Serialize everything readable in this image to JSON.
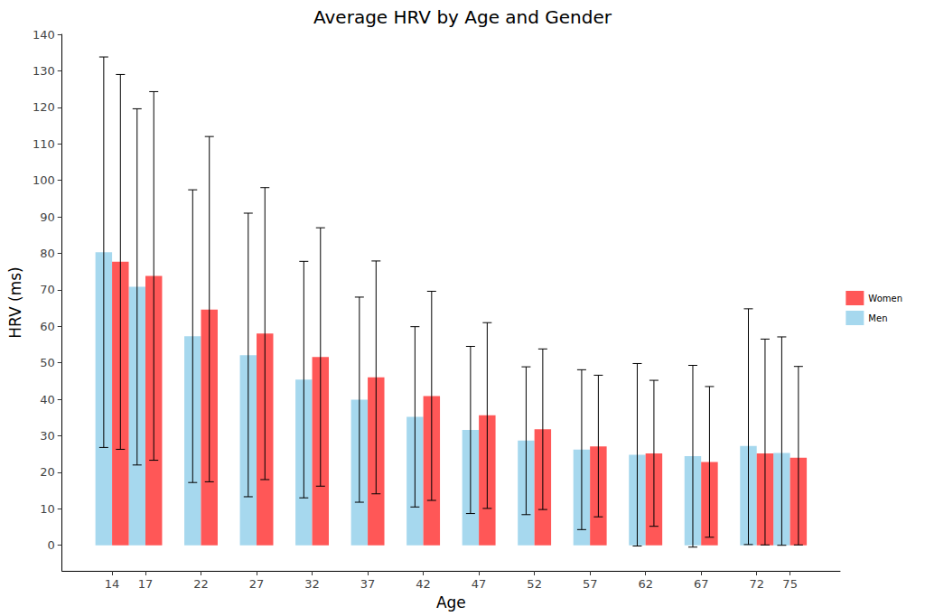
{
  "chart_data": {
    "type": "bar",
    "title": "Average HRV by Age and Gender",
    "x_label": "Age",
    "y_label": "HRV (ms)",
    "x": [
      14,
      17,
      22,
      27,
      32,
      37,
      42,
      47,
      52,
      57,
      62,
      67,
      72,
      75
    ],
    "xlim": [
      9.5,
      79.5
    ],
    "xticks": [
      14,
      17,
      22,
      27,
      32,
      37,
      42,
      47,
      52,
      57,
      62,
      67,
      72,
      75
    ],
    "ylim": [
      -7,
      140
    ],
    "yticks": [
      0,
      10,
      20,
      30,
      40,
      50,
      60,
      70,
      80,
      90,
      100,
      110,
      120,
      130,
      140
    ],
    "grid": false,
    "legend": "right",
    "series": [
      {
        "name": "Men",
        "color": "#a6d8ee",
        "values": [
          80.3,
          70.8,
          57.3,
          52.1,
          45.4,
          39.9,
          35.2,
          31.6,
          28.7,
          26.2,
          24.8,
          24.4,
          27.2,
          25.3
        ],
        "error_low": [
          26.8,
          22.0,
          17.2,
          13.3,
          13.0,
          11.8,
          10.5,
          8.7,
          8.4,
          4.3,
          -0.2,
          -0.5,
          0.2,
          0.0
        ],
        "error_high": [
          133.8,
          119.6,
          97.4,
          91.0,
          77.8,
          68.0,
          59.9,
          54.5,
          48.9,
          48.1,
          49.8,
          49.3,
          64.8,
          57.1
        ]
      },
      {
        "name": "Women",
        "color": "#ff5757",
        "values": [
          77.7,
          73.8,
          64.6,
          58.0,
          51.6,
          46.0,
          40.9,
          35.6,
          31.8,
          27.1,
          25.2,
          22.8,
          25.2,
          24.0
        ],
        "error_low": [
          26.3,
          23.3,
          17.4,
          18.0,
          16.2,
          14.1,
          12.3,
          10.1,
          9.8,
          7.8,
          5.2,
          2.2,
          0.1,
          0.1
        ],
        "error_high": [
          129.0,
          124.3,
          112.0,
          98.0,
          87.0,
          77.9,
          69.6,
          61.0,
          53.8,
          46.6,
          45.2,
          43.5,
          56.5,
          49.0
        ]
      }
    ]
  }
}
